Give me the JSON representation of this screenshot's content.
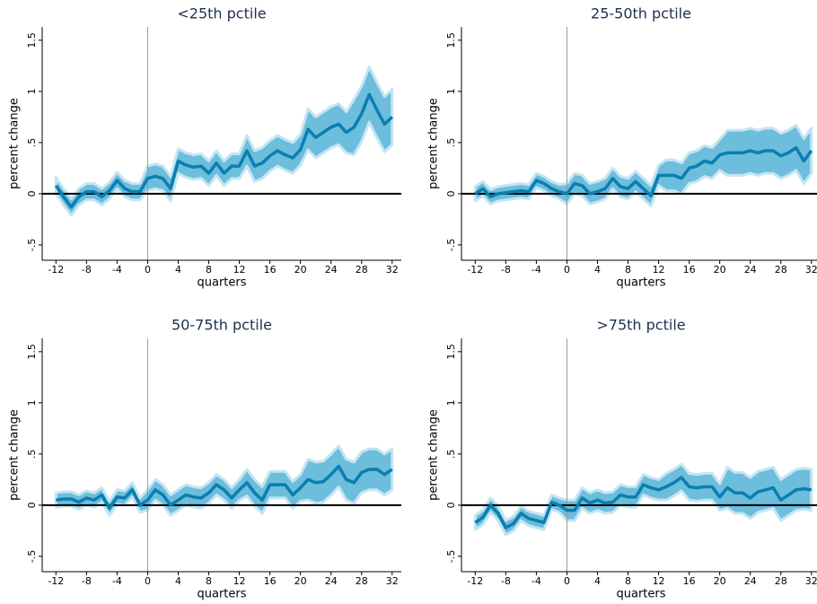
{
  "chart_data": [
    {
      "type": "line",
      "title": "<25th pctile",
      "xlabel": "quarters",
      "ylabel": "percent change",
      "x": [
        -12,
        -11,
        -10,
        -9,
        -8,
        -7,
        -6,
        -5,
        -4,
        -3,
        -2,
        -1,
        0,
        1,
        2,
        3,
        4,
        5,
        6,
        7,
        8,
        9,
        10,
        11,
        12,
        13,
        14,
        15,
        16,
        17,
        18,
        19,
        20,
        21,
        22,
        23,
        24,
        25,
        26,
        27,
        28,
        29,
        30,
        31,
        32
      ],
      "values": [
        0.08,
        -0.03,
        -0.13,
        -0.03,
        0.02,
        0.02,
        -0.03,
        0.03,
        0.13,
        0.05,
        0.02,
        0.02,
        0.15,
        0.17,
        0.15,
        0.05,
        0.32,
        0.28,
        0.26,
        0.27,
        0.2,
        0.3,
        0.2,
        0.27,
        0.27,
        0.42,
        0.27,
        0.3,
        0.37,
        0.42,
        0.38,
        0.35,
        0.43,
        0.63,
        0.55,
        0.6,
        0.65,
        0.68,
        0.6,
        0.65,
        0.78,
        0.97,
        0.82,
        0.68,
        0.75
      ],
      "lower": [
        0,
        -0.11,
        -0.21,
        -0.11,
        -0.06,
        -0.06,
        -0.11,
        -0.05,
        0.05,
        -0.03,
        -0.06,
        -0.06,
        0.03,
        0.05,
        0.03,
        -0.07,
        0.2,
        0.16,
        0.14,
        0.15,
        0.08,
        0.18,
        0.08,
        0.15,
        0.15,
        0.27,
        0.12,
        0.15,
        0.22,
        0.27,
        0.23,
        0.2,
        0.28,
        0.43,
        0.35,
        0.4,
        0.45,
        0.48,
        0.4,
        0.38,
        0.51,
        0.7,
        0.55,
        0.41,
        0.48
      ],
      "upper": [
        0.16,
        0.05,
        -0.05,
        0.05,
        0.1,
        0.1,
        0.05,
        0.11,
        0.21,
        0.13,
        0.1,
        0.1,
        0.27,
        0.29,
        0.27,
        0.17,
        0.44,
        0.4,
        0.38,
        0.39,
        0.32,
        0.42,
        0.32,
        0.39,
        0.39,
        0.57,
        0.42,
        0.45,
        0.52,
        0.57,
        0.53,
        0.5,
        0.58,
        0.83,
        0.75,
        0.8,
        0.85,
        0.88,
        0.8,
        0.92,
        1.05,
        1.24,
        1.09,
        0.95,
        1.02
      ],
      "color": "#0a7fb0",
      "band_color": "#6dbddd",
      "hline": 0,
      "vline": 0,
      "xlim": [
        -13.8,
        33.2
      ],
      "ylim": [
        -0.65,
        1.63
      ],
      "xticks": [
        -12,
        -8,
        -4,
        0,
        4,
        8,
        12,
        16,
        20,
        24,
        28,
        32
      ],
      "yticks": [
        {
          "value": -0.5,
          "label": "-.5"
        },
        0,
        {
          "value": 0.5,
          "label": ".5"
        },
        1,
        1.5
      ]
    },
    {
      "type": "line",
      "title": "25-50th pctile",
      "xlabel": "quarters",
      "ylabel": "percent change",
      "x": [
        -12,
        -11,
        -10,
        -9,
        -8,
        -7,
        -6,
        -5,
        -4,
        -3,
        -2,
        -1,
        0,
        1,
        2,
        3,
        4,
        5,
        6,
        7,
        8,
        9,
        10,
        11,
        12,
        13,
        14,
        15,
        16,
        17,
        18,
        19,
        20,
        21,
        22,
        23,
        24,
        25,
        26,
        27,
        28,
        29,
        30,
        31,
        32
      ],
      "values": [
        0,
        0.05,
        -0.03,
        0,
        0.01,
        0.02,
        0.03,
        0.02,
        0.13,
        0.1,
        0.05,
        0.02,
        0,
        0.1,
        0.08,
        0,
        0.02,
        0.05,
        0.15,
        0.07,
        0.05,
        0.12,
        0.05,
        -0.02,
        0.18,
        0.18,
        0.18,
        0.15,
        0.25,
        0.27,
        0.32,
        0.3,
        0.38,
        0.4,
        0.4,
        0.4,
        0.42,
        0.4,
        0.42,
        0.42,
        0.37,
        0.4,
        0.45,
        0.32,
        0.42
      ],
      "lower": [
        -0.07,
        -0.02,
        -0.1,
        -0.07,
        -0.06,
        -0.05,
        -0.04,
        -0.05,
        0.06,
        0.03,
        -0.02,
        -0.05,
        -0.1,
        0,
        -0.02,
        -0.1,
        -0.08,
        -0.05,
        0.05,
        -0.03,
        -0.05,
        0.02,
        -0.05,
        -0.12,
        0.08,
        0.03,
        0.03,
        0,
        0.1,
        0.12,
        0.17,
        0.15,
        0.23,
        0.18,
        0.18,
        0.18,
        0.2,
        0.18,
        0.2,
        0.2,
        0.15,
        0.18,
        0.23,
        0.1,
        0.2
      ],
      "upper": [
        0.07,
        0.12,
        0.04,
        0.07,
        0.08,
        0.09,
        0.1,
        0.09,
        0.2,
        0.17,
        0.12,
        0.09,
        0.1,
        0.2,
        0.18,
        0.1,
        0.12,
        0.15,
        0.25,
        0.17,
        0.15,
        0.22,
        0.15,
        0.08,
        0.28,
        0.33,
        0.33,
        0.3,
        0.4,
        0.42,
        0.47,
        0.45,
        0.53,
        0.62,
        0.62,
        0.62,
        0.64,
        0.62,
        0.64,
        0.64,
        0.59,
        0.62,
        0.67,
        0.54,
        0.64
      ],
      "color": "#0a7fb0",
      "band_color": "#6dbddd",
      "hline": 0,
      "vline": 0,
      "xlim": [
        -13.8,
        33.2
      ],
      "ylim": [
        -0.65,
        1.63
      ],
      "xticks": [
        -12,
        -8,
        -4,
        0,
        4,
        8,
        12,
        16,
        20,
        24,
        28,
        32
      ],
      "yticks": [
        {
          "value": -0.5,
          "label": "-.5"
        },
        0,
        {
          "value": 0.5,
          "label": ".5"
        },
        1,
        1.5
      ]
    },
    {
      "type": "line",
      "title": "50-75th pctile",
      "xlabel": "quarters",
      "ylabel": "percent change",
      "x": [
        -12,
        -11,
        -10,
        -9,
        -8,
        -7,
        -6,
        -5,
        -4,
        -3,
        -2,
        -1,
        0,
        1,
        2,
        3,
        4,
        5,
        6,
        7,
        8,
        9,
        10,
        11,
        12,
        13,
        14,
        15,
        16,
        17,
        18,
        19,
        20,
        21,
        22,
        23,
        24,
        25,
        26,
        27,
        28,
        29,
        30,
        31,
        32
      ],
      "values": [
        0.05,
        0.06,
        0.06,
        0.03,
        0.07,
        0.05,
        0.1,
        -0.03,
        0.08,
        0.07,
        0.15,
        0,
        0.05,
        0.15,
        0.1,
        0,
        0.05,
        0.1,
        0.08,
        0.07,
        0.12,
        0.2,
        0.15,
        0.07,
        0.15,
        0.22,
        0.12,
        0.05,
        0.2,
        0.2,
        0.2,
        0.1,
        0.17,
        0.25,
        0.22,
        0.23,
        0.3,
        0.38,
        0.25,
        0.22,
        0.32,
        0.35,
        0.35,
        0.3,
        0.35
      ],
      "lower": [
        -0.02,
        -0.01,
        -0.01,
        -0.04,
        0,
        -0.02,
        0.03,
        -0.1,
        0.01,
        0,
        0.08,
        -0.07,
        -0.05,
        0.05,
        0,
        -0.1,
        -0.05,
        0,
        -0.02,
        -0.03,
        0.02,
        0.1,
        0.05,
        -0.03,
        0.05,
        0.09,
        -0.01,
        -0.08,
        0.07,
        0.07,
        0.07,
        -0.03,
        0.04,
        0.05,
        0.02,
        0.03,
        0.1,
        0.18,
        0.05,
        0.02,
        0.12,
        0.15,
        0.15,
        0.1,
        0.15
      ],
      "upper": [
        0.12,
        0.13,
        0.13,
        0.1,
        0.14,
        0.12,
        0.17,
        0.04,
        0.15,
        0.14,
        0.22,
        0.07,
        0.15,
        0.25,
        0.2,
        0.1,
        0.15,
        0.2,
        0.18,
        0.17,
        0.22,
        0.3,
        0.25,
        0.17,
        0.25,
        0.35,
        0.25,
        0.18,
        0.33,
        0.33,
        0.33,
        0.23,
        0.3,
        0.45,
        0.42,
        0.43,
        0.5,
        0.58,
        0.45,
        0.42,
        0.52,
        0.55,
        0.55,
        0.5,
        0.55
      ],
      "color": "#0a7fb0",
      "band_color": "#6dbddd",
      "hline": 0,
      "vline": 0,
      "xlim": [
        -13.8,
        33.2
      ],
      "ylim": [
        -0.65,
        1.63
      ],
      "xticks": [
        -12,
        -8,
        -4,
        0,
        4,
        8,
        12,
        16,
        20,
        24,
        28,
        32
      ],
      "yticks": [
        {
          "value": -0.5,
          "label": "-.5"
        },
        0,
        {
          "value": 0.5,
          "label": ".5"
        },
        1,
        1.5
      ]
    },
    {
      "type": "line",
      "title": ">75th pctile",
      "xlabel": "quarters",
      "ylabel": "percent change",
      "x": [
        -12,
        -11,
        -10,
        -9,
        -8,
        -7,
        -6,
        -5,
        -4,
        -3,
        -2,
        -1,
        0,
        1,
        2,
        3,
        4,
        5,
        6,
        7,
        8,
        9,
        10,
        11,
        12,
        13,
        14,
        15,
        16,
        17,
        18,
        19,
        20,
        21,
        22,
        23,
        24,
        25,
        26,
        27,
        28,
        29,
        30,
        31,
        32
      ],
      "values": [
        -0.17,
        -0.12,
        0,
        -0.08,
        -0.22,
        -0.18,
        -0.08,
        -0.13,
        -0.15,
        -0.17,
        0.03,
        0,
        -0.05,
        -0.05,
        0.07,
        0.02,
        0.05,
        0.02,
        0.03,
        0.1,
        0.08,
        0.08,
        0.2,
        0.17,
        0.15,
        0.18,
        0.22,
        0.27,
        0.18,
        0.17,
        0.18,
        0.18,
        0.08,
        0.17,
        0.12,
        0.12,
        0.07,
        0.13,
        0.15,
        0.17,
        0.05,
        0.1,
        0.15,
        0.16,
        0.15
      ],
      "lower": [
        -0.24,
        -0.19,
        -0.07,
        -0.15,
        -0.29,
        -0.25,
        -0.15,
        -0.2,
        -0.22,
        -0.24,
        -0.04,
        -0.07,
        -0.15,
        -0.15,
        -0.03,
        -0.08,
        -0.05,
        -0.08,
        -0.07,
        0,
        -0.02,
        -0.02,
        0.1,
        0.07,
        0.05,
        0.05,
        0.09,
        0.14,
        0.05,
        0.04,
        0.05,
        0.05,
        -0.05,
        -0.03,
        -0.08,
        -0.08,
        -0.13,
        -0.07,
        -0.05,
        -0.03,
        -0.15,
        -0.1,
        -0.05,
        -0.04,
        -0.05
      ],
      "upper": [
        -0.1,
        -0.05,
        0.07,
        -0.01,
        -0.15,
        -0.11,
        -0.01,
        -0.06,
        -0.08,
        -0.1,
        0.1,
        0.07,
        0.05,
        0.05,
        0.17,
        0.12,
        0.15,
        0.12,
        0.13,
        0.2,
        0.18,
        0.18,
        0.3,
        0.27,
        0.25,
        0.31,
        0.35,
        0.4,
        0.31,
        0.3,
        0.31,
        0.31,
        0.21,
        0.37,
        0.32,
        0.32,
        0.27,
        0.33,
        0.35,
        0.37,
        0.25,
        0.3,
        0.35,
        0.36,
        0.35
      ],
      "color": "#0a7fb0",
      "band_color": "#6dbddd",
      "hline": 0,
      "vline": 0,
      "xlim": [
        -13.8,
        33.2
      ],
      "ylim": [
        -0.65,
        1.63
      ],
      "xticks": [
        -12,
        -8,
        -4,
        0,
        4,
        8,
        12,
        16,
        20,
        24,
        28,
        32
      ],
      "yticks": [
        {
          "value": -0.5,
          "label": "-.5"
        },
        0,
        {
          "value": 0.5,
          "label": ".5"
        },
        1,
        1.5
      ]
    }
  ]
}
